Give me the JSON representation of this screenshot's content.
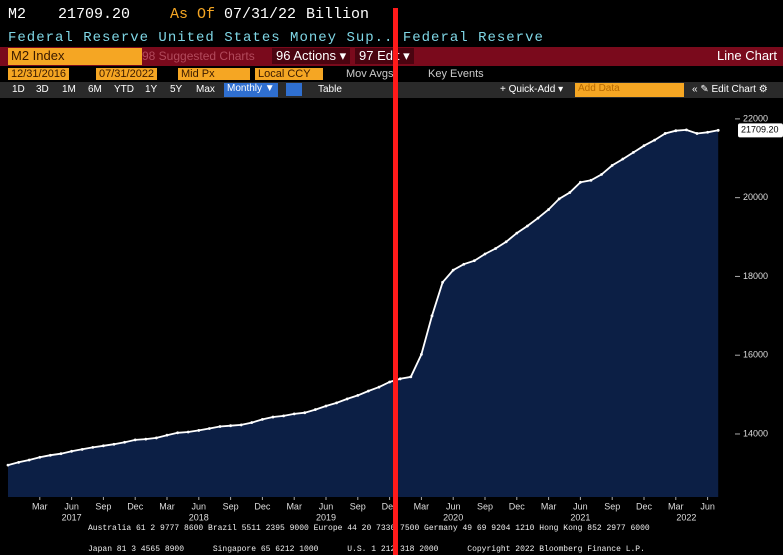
{
  "header": {
    "ticker": "M2",
    "last": "21709.20",
    "as_of": "As Of",
    "date": "07/31/22",
    "unit": "Billion",
    "description": "Federal Reserve United States Money Sup.. Federal Reserve"
  },
  "toolbar": {
    "security": "M2 Index",
    "suggested": "98 Suggested Charts",
    "actions": "96 Actions ▾",
    "edit": "97 Edit ▾",
    "chart_type": "Line Chart"
  },
  "controls": {
    "start": "12/31/2016",
    "end": "07/31/2022",
    "field": "Mid Px",
    "currency": "Local CCY",
    "mov_avgs": "Mov Avgs",
    "key_events": "Key Events"
  },
  "periods": [
    "1D",
    "3D",
    "1M",
    "6M",
    "YTD",
    "1Y",
    "5Y",
    "Max"
  ],
  "frequency": "Monthly ▼",
  "table": "Table",
  "quick_add": "+ Quick-Add ▾",
  "add_data": "Add Data",
  "edit_chart": "« ✎ Edit Chart ⚙",
  "footer": [
    "Australia 61 2 9777 8600 Brazil 5511 2395 9000 Europe 44 20 7330 7500 Germany 49 69 9204 1210 Hong Kong 852 2977 6000",
    "Japan 81 3 4565 8900      Singapore 65 6212 1000      U.S. 1 212 318 2000      Copyright 2022 Bloomberg Finance L.P."
  ],
  "chart_data": {
    "type": "line",
    "color": "#ffffff",
    "fill_color": "#0c1f45",
    "x": [
      "2016-12",
      "2017-01",
      "2017-02",
      "2017-03",
      "2017-04",
      "2017-05",
      "2017-06",
      "2017-07",
      "2017-08",
      "2017-09",
      "2017-10",
      "2017-11",
      "2017-12",
      "2018-01",
      "2018-02",
      "2018-03",
      "2018-04",
      "2018-05",
      "2018-06",
      "2018-07",
      "2018-08",
      "2018-09",
      "2018-10",
      "2018-11",
      "2018-12",
      "2019-01",
      "2019-02",
      "2019-03",
      "2019-04",
      "2019-05",
      "2019-06",
      "2019-07",
      "2019-08",
      "2019-09",
      "2019-10",
      "2019-11",
      "2019-12",
      "2020-01",
      "2020-02",
      "2020-03",
      "2020-04",
      "2020-05",
      "2020-06",
      "2020-07",
      "2020-08",
      "2020-09",
      "2020-10",
      "2020-11",
      "2020-12",
      "2021-01",
      "2021-02",
      "2021-03",
      "2021-04",
      "2021-05",
      "2021-06",
      "2021-07",
      "2021-08",
      "2021-09",
      "2021-10",
      "2021-11",
      "2021-12",
      "2022-01",
      "2022-02",
      "2022-03",
      "2022-04",
      "2022-05",
      "2022-06",
      "2022-07"
    ],
    "values": [
      13210,
      13280,
      13340,
      13410,
      13460,
      13500,
      13560,
      13610,
      13660,
      13700,
      13740,
      13790,
      13850,
      13870,
      13900,
      13970,
      14030,
      14050,
      14090,
      14140,
      14190,
      14210,
      14230,
      14290,
      14370,
      14430,
      14460,
      14510,
      14540,
      14620,
      14710,
      14790,
      14890,
      14980,
      15090,
      15190,
      15320,
      15400,
      15450,
      16020,
      17000,
      17850,
      18160,
      18310,
      18400,
      18570,
      18710,
      18880,
      19100,
      19280,
      19480,
      19700,
      19970,
      20130,
      20390,
      20440,
      20590,
      20820,
      20980,
      21150,
      21320,
      21460,
      21630,
      21700,
      21720,
      21630,
      21660,
      21709.2
    ],
    "last_value_label": "21709.20",
    "ylim": [
      12400,
      22200
    ],
    "yticks": [
      14000,
      16000,
      18000,
      20000,
      22000
    ],
    "xticks": [
      {
        "value": "2017-03",
        "label": "Mar"
      },
      {
        "value": "2017-06",
        "label": "Jun"
      },
      {
        "value": "2017-09",
        "label": "Sep"
      },
      {
        "value": "2017-12",
        "label": "Dec"
      },
      {
        "value": "2018-03",
        "label": "Mar"
      },
      {
        "value": "2018-06",
        "label": "Jun"
      },
      {
        "value": "2018-09",
        "label": "Sep"
      },
      {
        "value": "2018-12",
        "label": "Dec"
      },
      {
        "value": "2019-03",
        "label": "Mar"
      },
      {
        "value": "2019-06",
        "label": "Jun"
      },
      {
        "value": "2019-09",
        "label": "Sep"
      },
      {
        "value": "2019-12",
        "label": "Dec"
      },
      {
        "value": "2020-03",
        "label": "Mar"
      },
      {
        "value": "2020-06",
        "label": "Jun"
      },
      {
        "value": "2020-09",
        "label": "Sep"
      },
      {
        "value": "2020-12",
        "label": "Dec"
      },
      {
        "value": "2021-03",
        "label": "Mar"
      },
      {
        "value": "2021-06",
        "label": "Jun"
      },
      {
        "value": "2021-09",
        "label": "Sep"
      },
      {
        "value": "2021-12",
        "label": "Dec"
      },
      {
        "value": "2022-03",
        "label": "Mar"
      },
      {
        "value": "2022-06",
        "label": "Jun"
      }
    ],
    "year_labels": [
      {
        "value": "2017-06",
        "label": "2017"
      },
      {
        "value": "2018-06",
        "label": "2018"
      },
      {
        "value": "2019-06",
        "label": "2019"
      },
      {
        "value": "2020-06",
        "label": "2020"
      },
      {
        "value": "2021-06",
        "label": "2021"
      },
      {
        "value": "2022-04",
        "label": "2022"
      }
    ]
  }
}
